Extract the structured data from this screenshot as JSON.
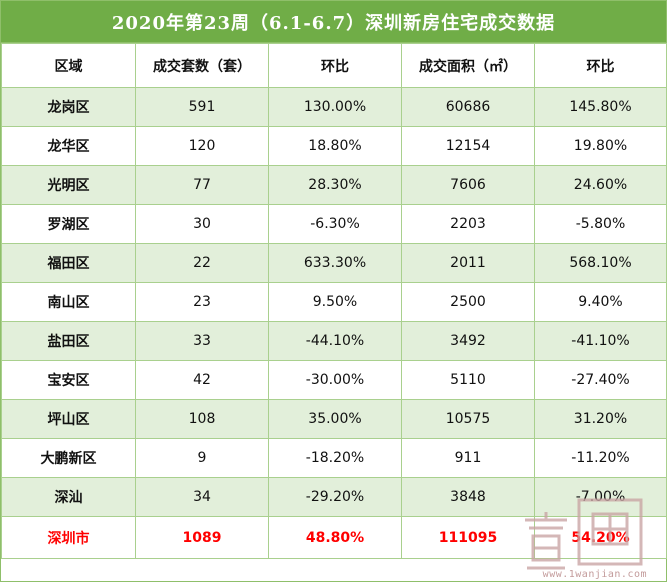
{
  "title": "2020年第23周（6.1-6.7）深圳新房住宅成交数据",
  "headers": [
    "区域",
    "成交套数（套）",
    "环比",
    "成交面积（㎡）",
    "环比"
  ],
  "rows": [
    {
      "region": "龙岗区",
      "units": "591",
      "units_chg": "130.00%",
      "area": "60686",
      "area_chg": "145.80%"
    },
    {
      "region": "龙华区",
      "units": "120",
      "units_chg": "18.80%",
      "area": "12154",
      "area_chg": "19.80%"
    },
    {
      "region": "光明区",
      "units": "77",
      "units_chg": "28.30%",
      "area": "7606",
      "area_chg": "24.60%"
    },
    {
      "region": "罗湖区",
      "units": "30",
      "units_chg": "-6.30%",
      "area": "2203",
      "area_chg": "-5.80%"
    },
    {
      "region": "福田区",
      "units": "22",
      "units_chg": "633.30%",
      "area": "2011",
      "area_chg": "568.10%"
    },
    {
      "region": "南山区",
      "units": "23",
      "units_chg": "9.50%",
      "area": "2500",
      "area_chg": "9.40%"
    },
    {
      "region": "盐田区",
      "units": "33",
      "units_chg": "-44.10%",
      "area": "3492",
      "area_chg": "-41.10%"
    },
    {
      "region": "宝安区",
      "units": "42",
      "units_chg": "-30.00%",
      "area": "5110",
      "area_chg": "-27.40%"
    },
    {
      "region": "坪山区",
      "units": "108",
      "units_chg": "35.00%",
      "area": "10575",
      "area_chg": "31.20%"
    },
    {
      "region": "大鹏新区",
      "units": "9",
      "units_chg": "-18.20%",
      "area": "911",
      "area_chg": "-11.20%"
    },
    {
      "region": "深汕",
      "units": "34",
      "units_chg": "-29.20%",
      "area": "3848",
      "area_chg": "-7.00%"
    }
  ],
  "total": {
    "region": "深圳市",
    "units": "1089",
    "units_chg": "48.80%",
    "area": "111095",
    "area_chg": "54.20%"
  },
  "watermark": {
    "text": "www.1wanjian.com"
  },
  "colors": {
    "title_bg": "#70ad47",
    "row_green": "#e2efda",
    "grid": "#a9d08e",
    "total_text": "#ff0000"
  }
}
